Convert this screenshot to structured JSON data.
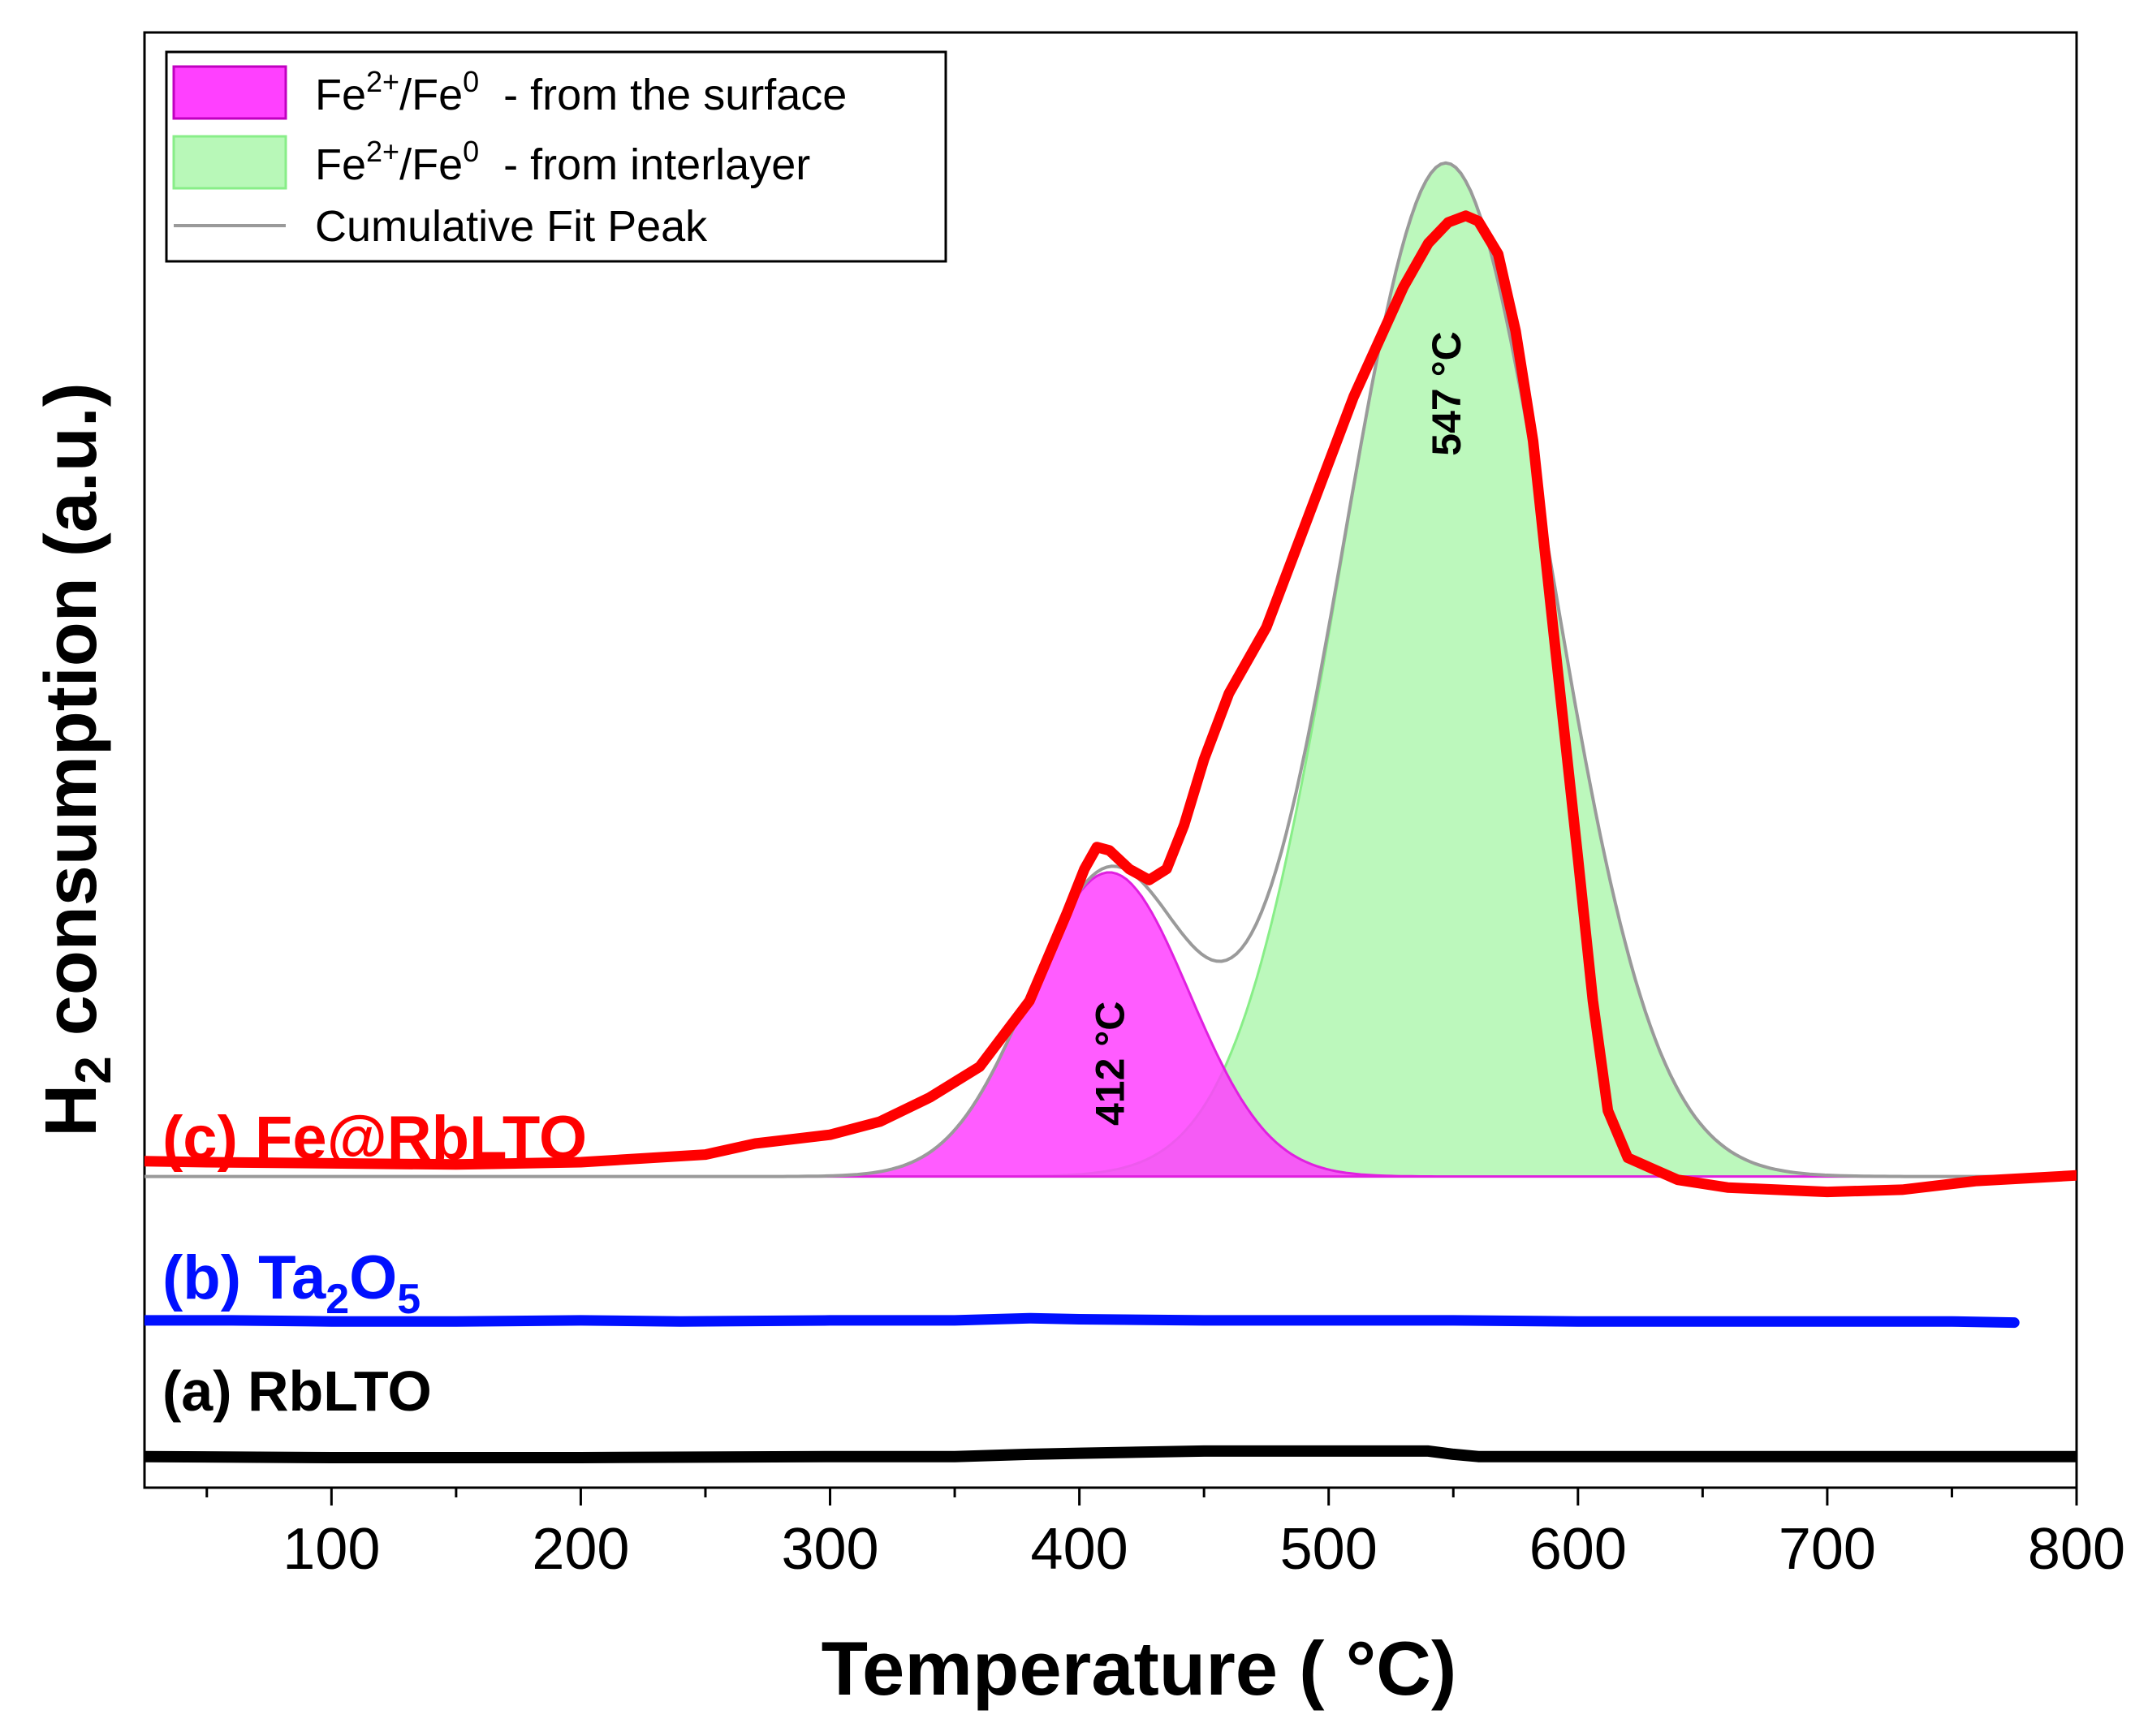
{
  "chart_data": {
    "type": "line",
    "title": "",
    "xlabel": "Temperature ( °C)",
    "ylabel": {
      "main": "H",
      "sub": "2",
      "rest": " consumption (a.u.)"
    },
    "xlim": [
      25,
      800
    ],
    "ylim": [
      0,
      100
    ],
    "x_ticks": [
      100,
      200,
      300,
      400,
      500,
      600,
      700,
      800
    ],
    "x_minor_ticks": [
      50,
      150,
      250,
      350,
      450,
      550,
      650,
      750
    ],
    "grid": false,
    "legend_position": "top-left",
    "colors": {
      "fe_rblto": "#ff0000",
      "ta2o5": "#0010ff",
      "rblto": "#000000",
      "surface_fill": "#ff40ff",
      "surface_stroke": "#e020e0",
      "interlayer_fill": "#b8f8b8",
      "interlayer_stroke": "#88ee88",
      "cumulative": "#9a9a9a"
    },
    "legend": [
      {
        "key": "surface",
        "base": "Fe",
        "sup1": "2+",
        "mid": "/Fe",
        "sup2": "0",
        "rest": "  - from the surface"
      },
      {
        "key": "interlayer",
        "base": "Fe",
        "sup1": "2+",
        "mid": "/Fe",
        "sup2": "0",
        "rest": "  - from interlayer"
      },
      {
        "key": "cumulative",
        "text": "Cumulative Fit Peak"
      }
    ],
    "labels": {
      "c": "(c) Fe@RbLTO",
      "b_pre": "(b) Ta",
      "b_sub1": "2",
      "b_mid": "O",
      "b_sub2": "5",
      "a": "(a) RbLTO"
    },
    "annotations": [
      {
        "text": "412 °C",
        "x": 412,
        "y": 24
      },
      {
        "text": "547 °C",
        "x": 547,
        "y": 85
      }
    ],
    "baselines": {
      "fe_rblto": 13.7,
      "ta2o5": 0.5,
      "rblto": -11.8
    },
    "peaks": [
      {
        "name": "surface",
        "center": 412,
        "height": 27.7,
        "sigma": 32
      },
      {
        "name": "interlayer",
        "center": 547,
        "height": 92.3,
        "sigma": 42
      }
    ],
    "series": [
      {
        "name": "(c) Fe@RbLTO",
        "color": "#ff0000",
        "points": [
          [
            25,
            15.1
          ],
          [
            50,
            15.0
          ],
          [
            100,
            14.9
          ],
          [
            150,
            14.8
          ],
          [
            200,
            15.0
          ],
          [
            250,
            15.7
          ],
          [
            270,
            16.7
          ],
          [
            300,
            17.5
          ],
          [
            320,
            18.7
          ],
          [
            340,
            20.9
          ],
          [
            360,
            23.7
          ],
          [
            380,
            29.7
          ],
          [
            395,
            37.7
          ],
          [
            402,
            41.7
          ],
          [
            407,
            43.7
          ],
          [
            412,
            43.4
          ],
          [
            420,
            41.7
          ],
          [
            428,
            40.7
          ],
          [
            435,
            41.7
          ],
          [
            442,
            45.7
          ],
          [
            450,
            51.7
          ],
          [
            460,
            57.7
          ],
          [
            475,
            63.7
          ],
          [
            490,
            72.7
          ],
          [
            500,
            78.7
          ],
          [
            510,
            84.7
          ],
          [
            520,
            89.7
          ],
          [
            530,
            94.7
          ],
          [
            540,
            98.7
          ],
          [
            548,
            100.6
          ],
          [
            555,
            101.2
          ],
          [
            560,
            100.7
          ],
          [
            568,
            97.7
          ],
          [
            575,
            90.7
          ],
          [
            582,
            80.7
          ],
          [
            590,
            63.7
          ],
          [
            600,
            42.7
          ],
          [
            606,
            29.7
          ],
          [
            612,
            19.7
          ],
          [
            620,
            15.4
          ],
          [
            640,
            13.4
          ],
          [
            660,
            12.7
          ],
          [
            700,
            12.3
          ],
          [
            730,
            12.5
          ],
          [
            760,
            13.3
          ],
          [
            800,
            13.8
          ]
        ]
      },
      {
        "name": "(b) Ta2O5",
        "color": "#0010ff",
        "points": [
          [
            25,
            0.6
          ],
          [
            60,
            0.6
          ],
          [
            100,
            0.5
          ],
          [
            150,
            0.5
          ],
          [
            200,
            0.6
          ],
          [
            240,
            0.5
          ],
          [
            300,
            0.6
          ],
          [
            350,
            0.6
          ],
          [
            380,
            0.8
          ],
          [
            400,
            0.7
          ],
          [
            450,
            0.6
          ],
          [
            500,
            0.6
          ],
          [
            550,
            0.6
          ],
          [
            600,
            0.5
          ],
          [
            650,
            0.5
          ],
          [
            700,
            0.5
          ],
          [
            750,
            0.5
          ],
          [
            775,
            0.4
          ]
        ]
      },
      {
        "name": "(a) RbLTO",
        "color": "#000000",
        "points": [
          [
            25,
            -11.8
          ],
          [
            100,
            -11.9
          ],
          [
            200,
            -11.9
          ],
          [
            300,
            -11.8
          ],
          [
            350,
            -11.8
          ],
          [
            380,
            -11.6
          ],
          [
            400,
            -11.5
          ],
          [
            450,
            -11.3
          ],
          [
            500,
            -11.3
          ],
          [
            540,
            -11.3
          ],
          [
            550,
            -11.6
          ],
          [
            560,
            -11.8
          ],
          [
            600,
            -11.8
          ],
          [
            700,
            -11.8
          ],
          [
            800,
            -11.8
          ]
        ]
      }
    ]
  }
}
